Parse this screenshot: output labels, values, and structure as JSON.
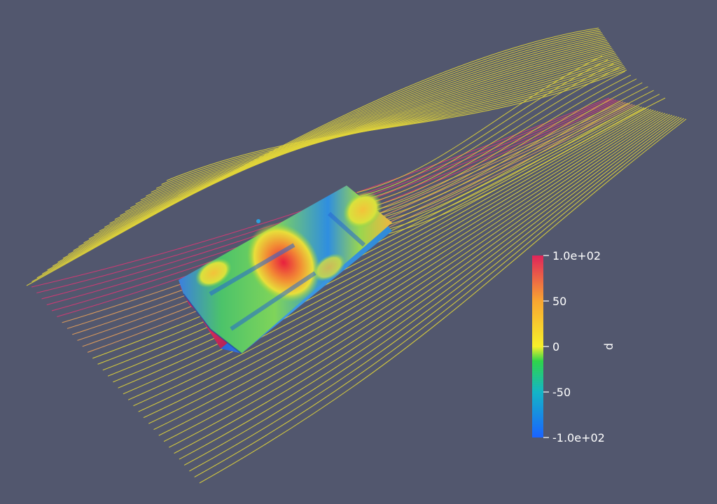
{
  "scene": {
    "background": "#52576e",
    "streamline_base_color": "#e0d43a",
    "object": "box-shaped vehicle body in a flow field, surface colored by pressure"
  },
  "colorbar": {
    "title": "p",
    "orientation": "vertical",
    "placement": "right",
    "range": [
      -100,
      100
    ],
    "ticks": [
      {
        "value": 100,
        "label": "1.0e+02"
      },
      {
        "value": 50,
        "label": "50"
      },
      {
        "value": 0,
        "label": "0"
      },
      {
        "value": -50,
        "label": "-50"
      },
      {
        "value": -100,
        "label": "-1.0e+02"
      }
    ],
    "colormap": [
      "#1a63ff",
      "#14b5c6",
      "#2fd44a",
      "#f7f02a",
      "#f8a531",
      "#e0245a"
    ]
  }
}
